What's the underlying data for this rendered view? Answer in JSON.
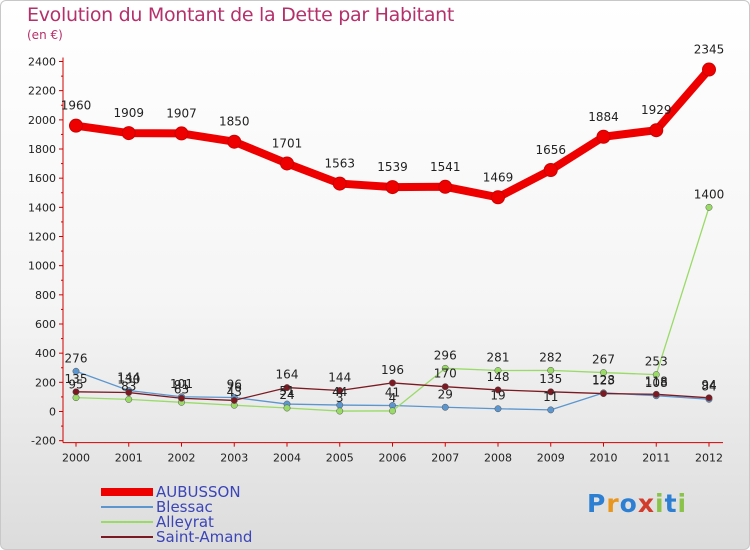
{
  "header": {
    "title": "Evolution du Montant de la Dette par Habitant",
    "unit": "(en €)"
  },
  "chart_data": {
    "type": "line",
    "title": "Evolution du Montant de la Dette par Habitant",
    "ylabel": "(en €)",
    "xlabel": "",
    "x": [
      "2000",
      "2001",
      "2002",
      "2003",
      "2004",
      "2005",
      "2006",
      "2007",
      "2008",
      "2009",
      "2010",
      "2011",
      "2012"
    ],
    "ylim": [
      -200,
      2400
    ],
    "yticks": [
      -200,
      0,
      200,
      400,
      600,
      800,
      1000,
      1200,
      1400,
      1600,
      1800,
      2000,
      2200,
      2400
    ],
    "grid": false,
    "legend_position": "bottom-left",
    "series": [
      {
        "name": "AUBUSSON",
        "color": "#ee0000",
        "values": [
          1960,
          1909,
          1907,
          1850,
          1701,
          1563,
          1539,
          1541,
          1469,
          1656,
          1884,
          1929,
          2345
        ]
      },
      {
        "name": "Blessac",
        "color": "#5b96cf",
        "values": [
          276,
          144,
          101,
          96,
          51,
          44,
          41,
          29,
          19,
          11,
          128,
          108,
          84
        ]
      },
      {
        "name": "Alleyrat",
        "color": "#99db66",
        "values": [
          95,
          83,
          63,
          43,
          24,
          3,
          4,
          296,
          281,
          282,
          267,
          253,
          1400
        ]
      },
      {
        "name": "Saint-Amand",
        "color": "#7b1a22",
        "values": [
          135,
          130,
          91,
          76,
          164,
          144,
          196,
          170,
          148,
          135,
          123,
          118,
          94
        ]
      }
    ]
  },
  "branding": {
    "letters": [
      "P",
      "r",
      "o",
      "x",
      "i",
      "t",
      "i"
    ],
    "colors": [
      "#2c7fd2",
      "#e8961e",
      "#2c7fd2",
      "#d23c2c",
      "#8bc34a",
      "#2c7fd2",
      "#8bc34a"
    ]
  }
}
